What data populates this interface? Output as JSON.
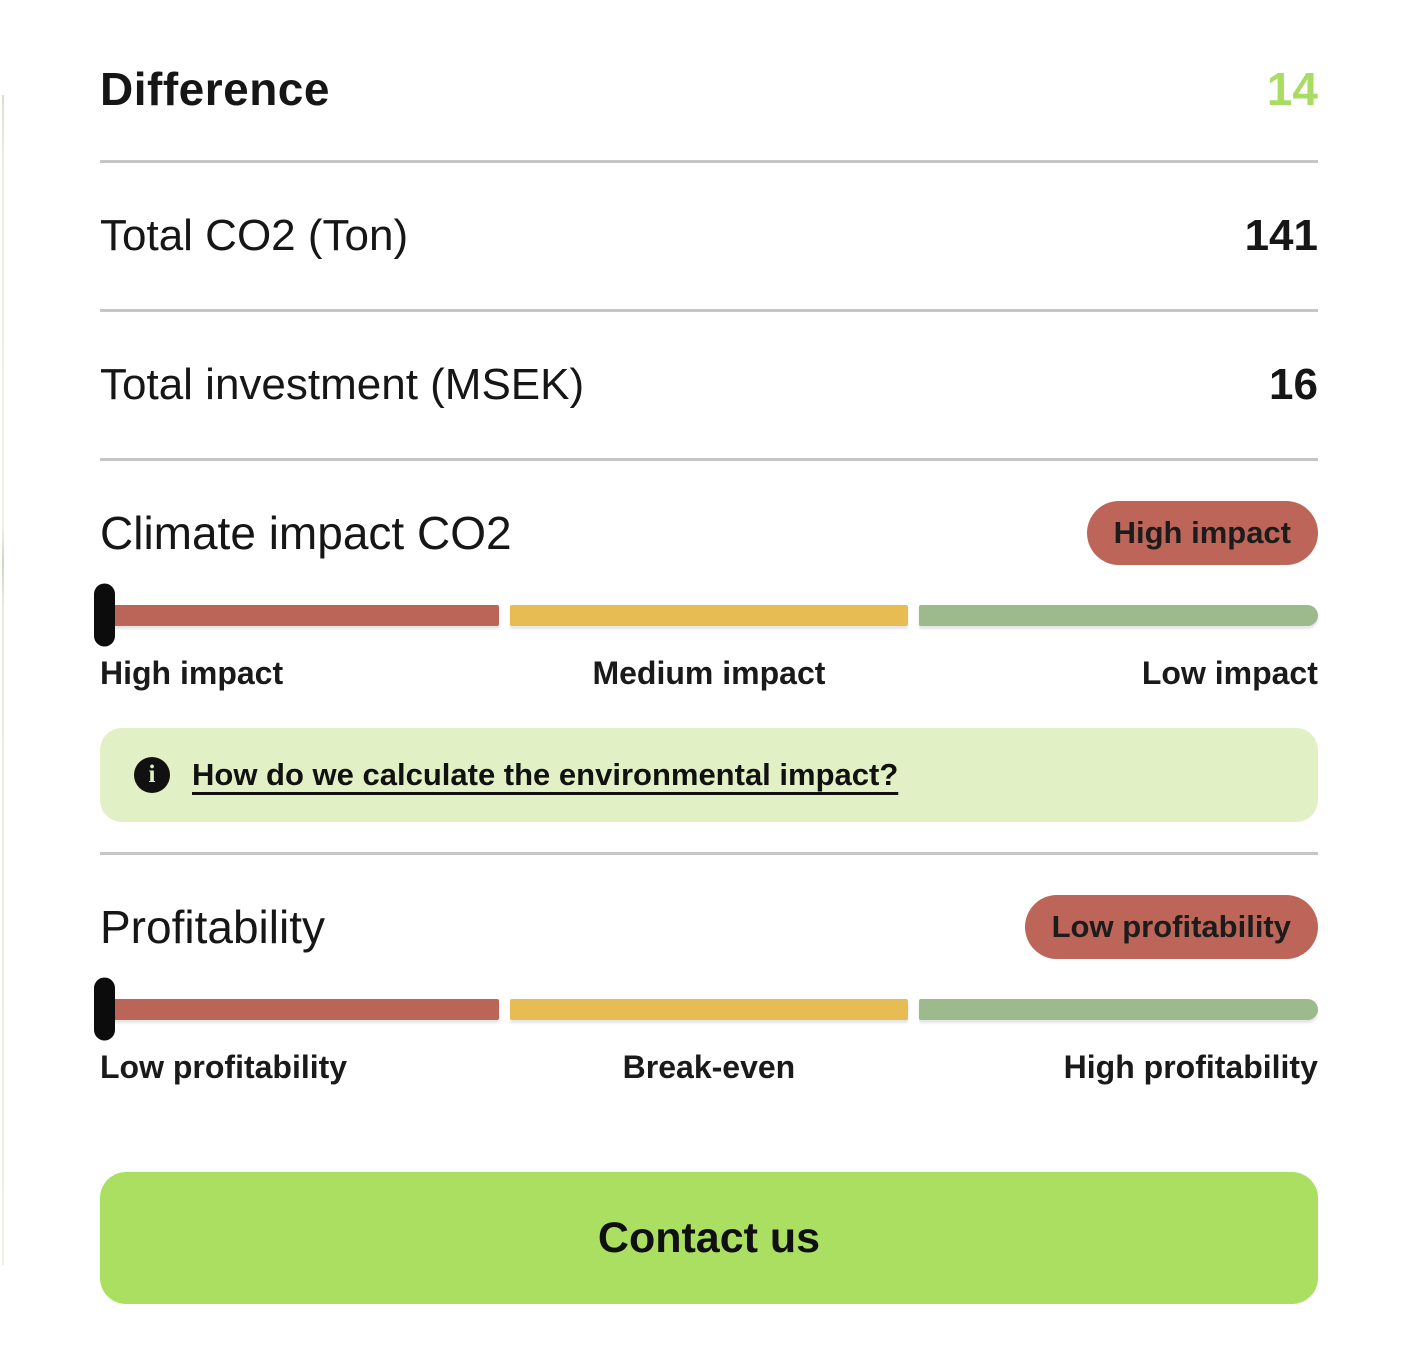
{
  "header": {
    "title": "Difference",
    "value": "14"
  },
  "rows": [
    {
      "label": "Total CO2 (Ton)",
      "value": "141"
    },
    {
      "label": "Total investment (MSEK)",
      "value": "16"
    }
  ],
  "sections": [
    {
      "title": "Climate impact CO2",
      "badge": "High impact",
      "scale_labels": [
        "High impact",
        "Medium impact",
        "Low impact"
      ],
      "slider_position": "left"
    },
    {
      "title": "Profitability",
      "badge": "Low profitability",
      "scale_labels": [
        "Low profitability",
        "Break-even",
        "High profitability"
      ],
      "slider_position": "left"
    }
  ],
  "info_banner": {
    "icon": "info-icon",
    "icon_glyph": "i",
    "text": "How do we calculate the environmental impact?"
  },
  "contact_button": {
    "label": "Contact us"
  },
  "colors": {
    "accent_green": "#a9dc64",
    "button_green": "#abdf62",
    "banner_green": "#e1f0c5",
    "badge_red": "#bd6559",
    "slider_red": "#bb6458",
    "slider_yellow": "#e7bd53",
    "slider_green": "#9cba8c",
    "divider_gray": "#c6c6c6",
    "handle_black": "#0c0c0c",
    "text_black": "#161616"
  }
}
